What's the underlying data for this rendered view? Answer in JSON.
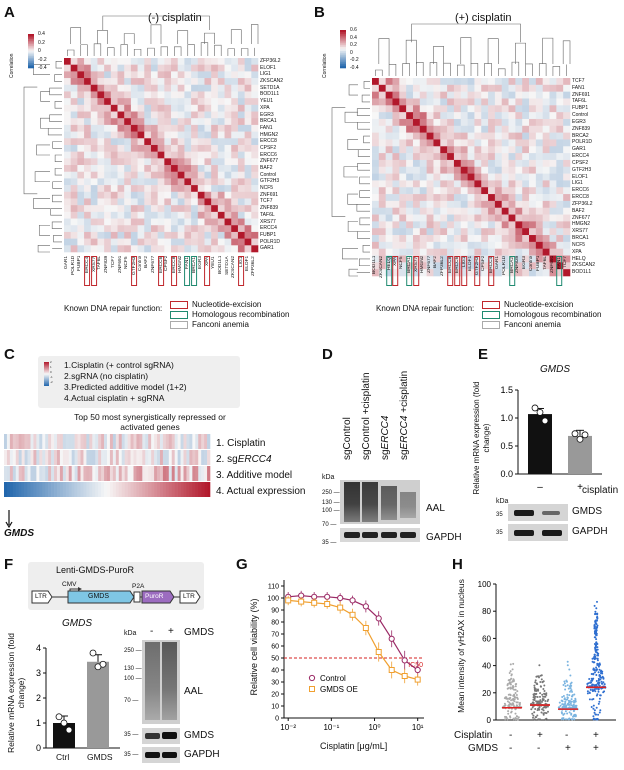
{
  "panels": {
    "A": {
      "letter": "A",
      "title": "(-) cisplatin"
    },
    "B": {
      "letter": "B",
      "title": "(+) cisplatin"
    },
    "C": {
      "letter": "C"
    },
    "D": {
      "letter": "D"
    },
    "E": {
      "letter": "E"
    },
    "F": {
      "letter": "F"
    },
    "G": {
      "letter": "G"
    },
    "H": {
      "letter": "H"
    }
  },
  "corr_scale": {
    "title": "Correlation",
    "ticks": [
      "0.4",
      "0.2",
      "0",
      "-0.2",
      "-0.4"
    ]
  },
  "corr_scale_b": {
    "title": "Correlation",
    "ticks": [
      "0.6",
      "0.4",
      "0.2",
      "0",
      "-0.2",
      "-0.4"
    ]
  },
  "genes_A": [
    "ZFP36L2",
    "ELOF1",
    "LIG1",
    "ZKSCAN2",
    "SETD1A",
    "BOD1L1",
    "YEU1",
    "XPA",
    "EGR3",
    "BRCA1",
    "FAN1",
    "HMGN2",
    "ERCC8",
    "CPSF2",
    "ERCC6",
    "ZNF677",
    "BAF2",
    "Control",
    "GTF2H3",
    "NCF5",
    "ZNF691",
    "TCF7",
    "ZNF839",
    "TAF6L",
    "XRS77",
    "ERCC4",
    "FUBP1",
    "POLR1D",
    "GAR1"
  ],
  "genes_B": [
    "TCF7",
    "FAN1",
    "ZNF691",
    "TAF6L",
    "FUBP1",
    "Control",
    "EGR3",
    "ZNF839",
    "BRCA2",
    "POLR1D",
    "GAR1",
    "ERCC4",
    "CPSF2",
    "GTF2H3",
    "ELOF1",
    "LIG1",
    "ERCC6",
    "ERCC8",
    "ZFP36L2",
    "BAF2",
    "ZNF677",
    "HMGN2",
    "XRS77",
    "BRCA1",
    "NCF5",
    "XPA",
    "HELQ",
    "ZKSCAN2",
    "BOD1L1"
  ],
  "repair_legend": {
    "title": "Known DNA repair function:",
    "items": [
      {
        "label": "Nucleotide-excision",
        "color": "#c0282d"
      },
      {
        "label": "Homologous recombination",
        "color": "#1f8a70"
      },
      {
        "label": "Fanconi anemia",
        "color": "#aaaaaa"
      }
    ]
  },
  "panelC": {
    "legend_items": [
      "1.Cisplatin (+ control sgRNA)",
      "2.sgRNA (no cisplatin)",
      "3.Predicted additive model (1+2)",
      "4.Actual cisplatin + sgRNA"
    ],
    "mini_scale": [
      "2",
      "1",
      "0",
      "-1",
      "-2"
    ],
    "caption": "Top 50 most synergistically repressed or activated genes",
    "rows": [
      "1. Cisplatin",
      "2. sgERCC4",
      "3. Additive model",
      "4. Actual expression"
    ],
    "gene": "GMDS"
  },
  "panelD": {
    "lanes": [
      "sgControl",
      "sgControl +cisplatin",
      "sgERCC4",
      "sgERCC4 +cisplatin"
    ],
    "kda_title": "kDa",
    "kda": [
      "250",
      "130",
      "100",
      "70",
      "35"
    ],
    "band_label": "AAL",
    "loading": "GAPDH"
  },
  "panelE": {
    "title": "GMDS",
    "ylabel": "Relative mRNA expression (fold change)",
    "yticks": [
      "0.0",
      "0.5",
      "1.0",
      "1.5"
    ],
    "cond_label": "cisplatin",
    "cond": [
      "–",
      "+"
    ],
    "kda_title": "kDa",
    "kda": [
      "35",
      "35"
    ],
    "blots": [
      "GMDS",
      "GAPDH"
    ],
    "chart_data": {
      "type": "bar",
      "categories": [
        "-",
        "+"
      ],
      "values": [
        1.07,
        0.68
      ],
      "points": [
        [
          1.18,
          1.1,
          0.95
        ],
        [
          0.72,
          0.62,
          0.7
        ]
      ],
      "title": "GMDS",
      "ylabel": "Relative mRNA expression (fold change)",
      "ylim": [
        0,
        1.5
      ]
    }
  },
  "panelF": {
    "construct_title": "Lenti-GMDS-PuroR",
    "construct_parts": [
      "LTR",
      "CMV",
      "GMDS",
      "P2A",
      "PuroR",
      "LTR"
    ],
    "title": "GMDS",
    "ylabel": "Relative mRNA expression (fold change)",
    "yticks": [
      "0",
      "1",
      "2",
      "3",
      "4"
    ],
    "cats": [
      "Ctrl",
      "GMDS"
    ],
    "lane_signs": [
      "-",
      "+"
    ],
    "lane_label": "GMDS",
    "kda_title": "kDa",
    "kda": [
      "250",
      "130",
      "100",
      "70",
      "35",
      "35"
    ],
    "blots": [
      "AAL",
      "GMDS",
      "GAPDH"
    ],
    "chart_data": {
      "type": "bar",
      "categories": [
        "Ctrl",
        "GMDS"
      ],
      "values": [
        1.0,
        3.45
      ],
      "points": [
        [
          1.25,
          1.0,
          0.72
        ],
        [
          3.8,
          3.25,
          3.35
        ]
      ],
      "ylim": [
        0,
        4
      ]
    }
  },
  "panelG": {
    "ylabel": "Relative cell viability (%)",
    "xlabel": "Cisplatin [μg/mL]",
    "yticks": [
      "0",
      "10",
      "20",
      "30",
      "40",
      "50",
      "60",
      "70",
      "80",
      "90",
      "100",
      "110"
    ],
    "xticks": [
      "10⁻²",
      "10⁻¹",
      "10⁰",
      "10¹"
    ],
    "ic50": "IC50",
    "series_labels": [
      "Control",
      "GMDS OE"
    ],
    "colors": {
      "control": "#9b2a66",
      "oe": "#f0a030",
      "ic50": "#d62020"
    },
    "chart_data": {
      "type": "line",
      "x": [
        0.01,
        0.02,
        0.04,
        0.08,
        0.16,
        0.31,
        0.63,
        1.25,
        2.5,
        5,
        10
      ],
      "series": [
        {
          "name": "Control",
          "values": [
            101,
            102,
            101,
            101,
            100,
            98,
            93,
            83,
            66,
            48,
            40
          ],
          "error": [
            4,
            4,
            4,
            4,
            4,
            4,
            5,
            6,
            7,
            8,
            8
          ]
        },
        {
          "name": "GMDS OE",
          "values": [
            98,
            97,
            96,
            95,
            92,
            86,
            75,
            55,
            40,
            35,
            32
          ],
          "error": [
            4,
            4,
            4,
            4,
            5,
            5,
            6,
            8,
            7,
            6,
            5
          ]
        }
      ],
      "ylim": [
        0,
        115
      ],
      "xlim": [
        0.008,
        14
      ],
      "ic50_y": 50
    }
  },
  "panelH": {
    "ylabel": "Mean intensity of γH2AX in nucleus",
    "yticks": [
      "0",
      "20",
      "40",
      "60",
      "80",
      "100"
    ],
    "row_labels": [
      "Cisplatin",
      "GMDS"
    ],
    "cisplatin": [
      "-",
      "+",
      "-",
      "+"
    ],
    "gmds": [
      "-",
      "-",
      "+",
      "+"
    ],
    "chart_data": {
      "type": "scatter",
      "groups": [
        "-/-",
        "+/-",
        "-/+",
        "+/+"
      ],
      "means": [
        9,
        11,
        8,
        24
      ],
      "ylim": [
        0,
        100
      ],
      "colors": [
        "#aaaaaa",
        "#777777",
        "#7ab4e0",
        "#2f6fd0"
      ]
    }
  }
}
